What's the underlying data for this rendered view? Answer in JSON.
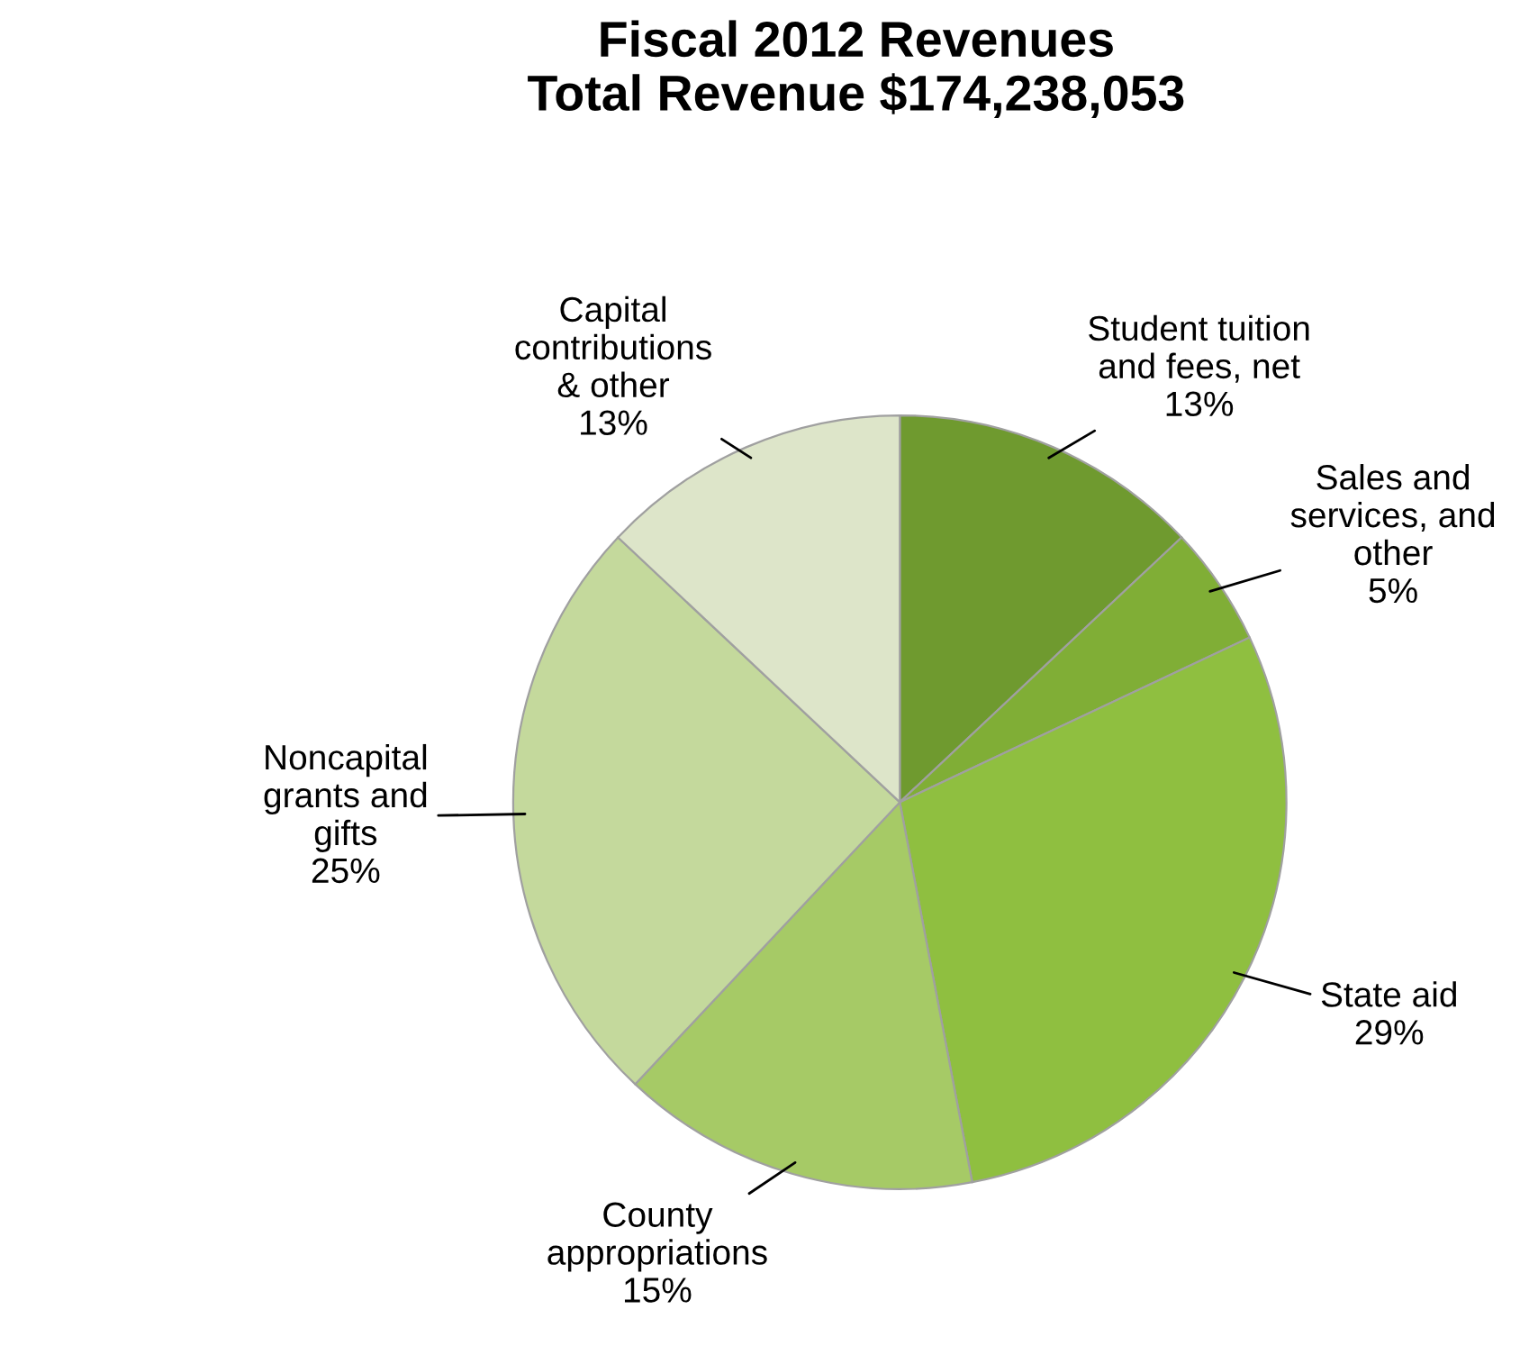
{
  "chart_data": {
    "type": "pie",
    "title": "Fiscal 2012 Revenues\nTotal Revenue $174,238,053",
    "categories": [
      "Student tuition\nand fees, net",
      "Sales and\nservices, and\nother",
      "State aid",
      "County\nappropriations",
      "Noncapital\ngrants and\ngifts",
      "Capital\ncontributions\n& other"
    ],
    "values": [
      13,
      5,
      29,
      15,
      25,
      13
    ],
    "value_labels": [
      "13%",
      "5%",
      "29%",
      "15%",
      "25%",
      "13%"
    ],
    "colors": [
      "#6f9a2f",
      "#80ae36",
      "#8fbf40",
      "#a6ca66",
      "#c4d99c",
      "#dde5c9"
    ]
  }
}
